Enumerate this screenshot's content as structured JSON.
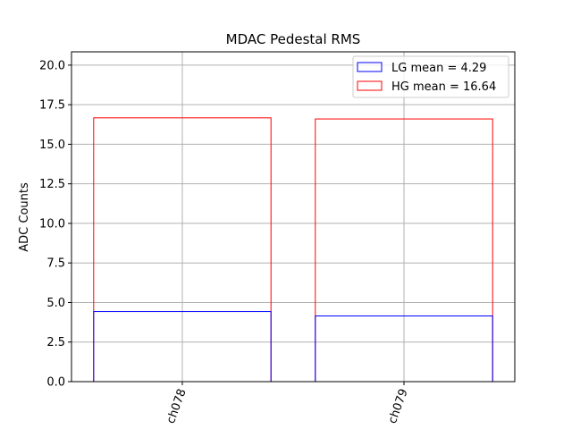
{
  "chart_data": {
    "type": "bar",
    "title": "MDAC Pedestal RMS",
    "xlabel": "",
    "ylabel": "ADC Counts",
    "categories": [
      "ch078",
      "ch079"
    ],
    "series": [
      {
        "name": "LG mean = 4.29",
        "values": [
          4.43,
          4.15
        ],
        "color": "#0000ff",
        "fill": "none"
      },
      {
        "name": "HG mean = 16.64",
        "values": [
          16.67,
          16.6
        ],
        "color": "#ff0000",
        "fill": "none"
      }
    ],
    "ylim": [
      0,
      20.84
    ],
    "yticks": [
      "0.0",
      "2.5",
      "5.0",
      "7.5",
      "10.0",
      "12.5",
      "15.0",
      "17.5",
      "20.0"
    ],
    "x_tick_rotation_deg": 70,
    "grid": true,
    "legend_position": "upper right"
  }
}
